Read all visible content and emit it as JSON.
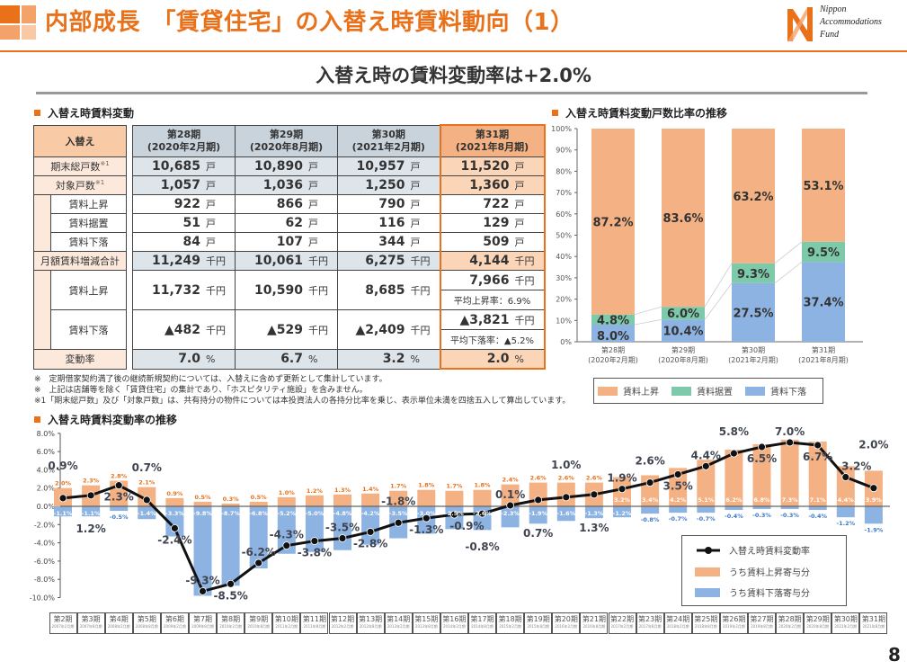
{
  "header": {
    "title": "内部成長　「賃貸住宅」の入替え時賃料動向（1）",
    "logo_lines": [
      "Nippon",
      "Accommodations",
      "Fund"
    ]
  },
  "subtitle": "入替え時の賃料変動率は+2.0%",
  "colors": {
    "accent": "#e8711a",
    "rent_up": "#f4b183",
    "rent_flat": "#7dcaaa",
    "rent_down": "#8db3e2",
    "line": "#111111"
  },
  "table": {
    "section_title": "入替え時賃料変動",
    "corner_label": "入替え",
    "columns": [
      {
        "period": "第28期",
        "date": "(2020年2月期)"
      },
      {
        "period": "第29期",
        "date": "(2020年8月期)"
      },
      {
        "period": "第30期",
        "date": "(2021年2月期)"
      },
      {
        "period": "第31期",
        "date": "(2021年8月期)"
      }
    ],
    "rows": {
      "total_units": {
        "label": "期末総戸数",
        "mark": "※1",
        "unit": "戸",
        "values": [
          "10,685",
          "10,890",
          "10,957",
          "11,520"
        ]
      },
      "target_units": {
        "label": "対象戸数",
        "mark": "※1",
        "unit": "戸",
        "values": [
          "1,057",
          "1,036",
          "1,250",
          "1,360"
        ]
      },
      "units_up": {
        "label": "賃料上昇",
        "unit": "戸",
        "values": [
          "922",
          "866",
          "790",
          "722"
        ]
      },
      "units_flat": {
        "label": "賃料据置",
        "unit": "戸",
        "values": [
          "51",
          "62",
          "116",
          "129"
        ]
      },
      "units_down": {
        "label": "賃料下落",
        "unit": "戸",
        "values": [
          "84",
          "107",
          "344",
          "509"
        ]
      },
      "monthly_total": {
        "label": "月額賃料増減合計",
        "unit": "千円",
        "values": [
          "11,249",
          "10,061",
          "6,275",
          "4,144"
        ]
      },
      "monthly_up": {
        "label": "賃料上昇",
        "unit": "千円",
        "values": [
          "11,732",
          "10,590",
          "8,685",
          "7,966"
        ],
        "note": "平均上昇率：6.9%"
      },
      "monthly_down": {
        "label": "賃料下落",
        "unit": "千円",
        "values": [
          "▲482",
          "▲529",
          "▲2,409",
          "▲3,821"
        ],
        "note": "平均下落率：▲5.2%"
      },
      "change_rate": {
        "label": "変動率",
        "unit": "%",
        "values": [
          "7.0",
          "6.7",
          "3.2",
          "2.0"
        ]
      }
    }
  },
  "notes": [
    "※　定期借家契約満了後の継続新規契約については、入替えに含めず更新として集計しています。",
    "※　上記は店舗等を除く「賃貸住宅」の集計であり、「ホスピタリティ施設」を含みません。",
    "※1「期末総戸数」及び「対象戸数」は、共有持分の物件については本投資法人の各持分比率を乗じ、表示単位未満を四捨五入して算出しています。"
  ],
  "chart_data": [
    {
      "type": "bar",
      "stacked": true,
      "title": "入替え時賃料変動戸数比率の推移",
      "categories": [
        [
          "第28期",
          "(2020年2月期)"
        ],
        [
          "第29期",
          "(2020年8月期)"
        ],
        [
          "第30期",
          "(2021年2月期)"
        ],
        [
          "第31期",
          "(2021年8月期)"
        ]
      ],
      "series": [
        {
          "name": "賃料下落",
          "values": [
            8.0,
            10.4,
            27.5,
            37.4
          ],
          "color": "#8db3e2"
        },
        {
          "name": "賃料据置",
          "values": [
            4.8,
            6.0,
            9.3,
            9.5
          ],
          "color": "#7dcaaa"
        },
        {
          "name": "賃料上昇",
          "values": [
            87.2,
            83.6,
            63.2,
            53.1
          ],
          "color": "#f4b183"
        }
      ],
      "legend_order": [
        "賃料上昇",
        "賃料据置",
        "賃料下落"
      ],
      "ylim": [
        0,
        100
      ],
      "yticks": [
        "0%",
        "10%",
        "20%",
        "30%",
        "40%",
        "50%",
        "60%",
        "70%",
        "80%",
        "90%",
        "100%"
      ],
      "legend": "bottom"
    },
    {
      "type": "bar+line",
      "title": "入替え時賃料変動率の推移",
      "categories": [
        "第2期",
        "第3期",
        "第4期",
        "第5期",
        "第6期",
        "第7期",
        "第8期",
        "第9期",
        "第10期",
        "第11期",
        "第12期",
        "第13期",
        "第14期",
        "第15期",
        "第16期",
        "第17期",
        "第18期",
        "第19期",
        "第20期",
        "第21期",
        "第22期",
        "第23期",
        "第24期",
        "第25期",
        "第26期",
        "第27期",
        "第28期",
        "第29期",
        "第30期",
        "第31期"
      ],
      "category_dates": [
        "2007年2月期",
        "2007年8月期",
        "2008年2月期",
        "2008年8月期",
        "2009年2月期",
        "2009年8月期",
        "2010年2月期",
        "2010年8月期",
        "2011年2月期",
        "2011年8月期",
        "2012年2月期",
        "2012年8月期",
        "2013年2月期",
        "2013年8月期",
        "2014年2月期",
        "2014年8月期",
        "2015年2月期",
        "2015年8月期",
        "2016年2月期",
        "2016年8月期",
        "2017年2月期",
        "2017年8月期",
        "2018年2月期",
        "2018年8月期",
        "2019年2月期",
        "2019年8月期",
        "2020年2月期",
        "2020年8月期",
        "2021年2月期",
        "2021年8月期"
      ],
      "series": [
        {
          "name": "入替え時賃料変動率",
          "kind": "line",
          "color": "#111111",
          "values": [
            0.9,
            1.2,
            2.3,
            0.7,
            -2.4,
            -9.3,
            -8.5,
            -6.2,
            -4.3,
            -3.8,
            -3.5,
            -2.8,
            -1.8,
            -1.3,
            -0.9,
            -0.8,
            0.1,
            0.7,
            1.0,
            1.3,
            1.9,
            2.6,
            3.5,
            4.4,
            5.8,
            6.5,
            7.0,
            6.7,
            3.2,
            2.0
          ]
        },
        {
          "name": "うち賃料上昇寄与分",
          "kind": "bar",
          "color": "#f4b183",
          "values": [
            2.0,
            2.3,
            2.8,
            2.1,
            0.9,
            0.5,
            0.3,
            0.5,
            1.0,
            1.2,
            1.3,
            1.4,
            1.7,
            1.8,
            1.7,
            1.8,
            2.4,
            2.6,
            2.6,
            2.6,
            3.2,
            3.4,
            4.2,
            5.1,
            6.2,
            6.8,
            7.3,
            7.1,
            4.4,
            3.9
          ]
        },
        {
          "name": "うち賃料下落寄与分",
          "kind": "bar",
          "color": "#8db3e2",
          "values": [
            -1.1,
            -1.1,
            -0.5,
            -1.4,
            -3.3,
            -9.8,
            -8.7,
            -6.8,
            -5.2,
            -5.0,
            -4.8,
            -4.2,
            -3.5,
            -3.0,
            -2.5,
            -2.6,
            -2.3,
            -1.9,
            -1.6,
            -1.3,
            -1.2,
            -0.8,
            -0.7,
            -0.7,
            -0.4,
            -0.3,
            -0.3,
            -0.4,
            -1.2,
            -1.9
          ]
        }
      ],
      "ylim": [
        -10,
        8
      ],
      "yticks": [
        "-10.0%",
        "-8.0%",
        "-6.0%",
        "-4.0%",
        "-2.0%",
        "0.0%",
        "2.0%",
        "4.0%",
        "6.0%",
        "8.0%"
      ],
      "legend": "bottom-right"
    }
  ],
  "page_number": "8"
}
